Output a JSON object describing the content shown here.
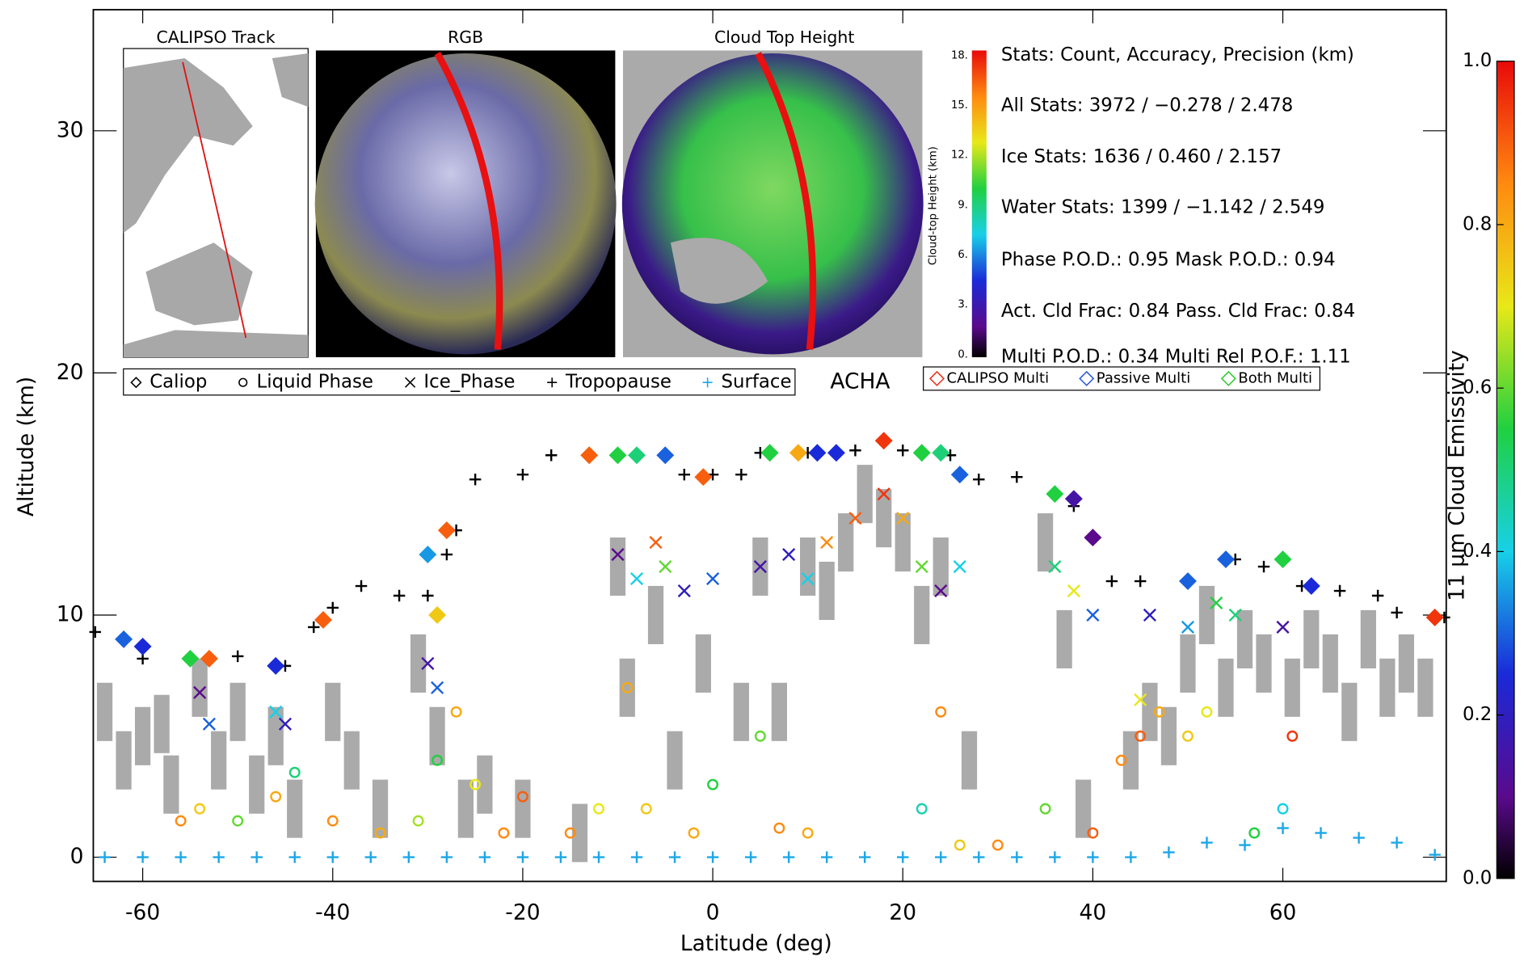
{
  "chart_data": {
    "type": "scatter",
    "xlabel": "Latitude (deg)",
    "ylabel": "Altitude (km)",
    "xlim": [
      -65.2,
      77.2
    ],
    "ylim": [
      -1,
      35
    ],
    "xticks": [
      -60,
      -40,
      -20,
      0,
      20,
      40,
      60
    ],
    "yticks": [
      0,
      10,
      20,
      30
    ],
    "insets": [
      "CALIPSO Track",
      "RGB",
      "Cloud Top Height"
    ],
    "inset_colorbar": {
      "label": "Cloud-top Height (km)",
      "lim": [
        0,
        18
      ],
      "ticks": [
        {
          "value": 0,
          "label": "0."
        },
        {
          "value": 3,
          "label": "3."
        },
        {
          "value": 6,
          "label": "6."
        },
        {
          "value": 9,
          "label": "9."
        },
        {
          "value": 12,
          "label": "12."
        },
        {
          "value": 15,
          "label": "15."
        },
        {
          "value": 18,
          "label": "18."
        }
      ]
    },
    "stats": [
      "Stats: Count, Accuracy, Precision (km)",
      "All Stats: 3972 /  −0.278 /   2.478",
      "Ice Stats: 1636 /   0.460 /   2.157",
      "Water Stats: 1399 /  −1.142 /   2.549",
      "Phase P.O.D.: 0.95  Mask P.O.D.: 0.94",
      "Act. Cld Frac: 0.84  Pass. Cld Frac: 0.84",
      "Multi P.O.D.: 0.34    Multi Rel P.O.F.: 1.11"
    ],
    "acha_label": "ACHA",
    "multi_legend": [
      {
        "name": "CALIPSO Multi",
        "color": "#e8341c"
      },
      {
        "name": "Passive Multi",
        "color": "#2a5bd7"
      },
      {
        "name": "Both Multi",
        "color": "#33cc33"
      }
    ],
    "colorbar": {
      "label": "11 μm Cloud Emissivity",
      "lim": [
        0,
        1
      ],
      "ticks": [
        {
          "value": 0,
          "label": "0.0"
        },
        0.2,
        0.4,
        0.6,
        0.8,
        {
          "value": 1,
          "label": "1.0"
        }
      ]
    },
    "acha": {
      "color": "#aaaaaa",
      "x": [
        -64,
        -62,
        -60,
        -58,
        -57,
        -54,
        -52,
        -50,
        -48,
        -46,
        -44,
        -40,
        -38,
        -35,
        -31,
        -29,
        -26,
        -24,
        -20,
        -14,
        -10,
        -9,
        -6,
        -4,
        -1,
        3,
        5,
        7,
        10,
        12,
        14,
        16,
        18,
        20,
        22,
        24,
        27,
        35,
        37,
        39,
        44,
        46,
        48,
        50,
        52,
        54,
        56,
        58,
        61,
        63,
        65,
        67,
        69,
        71,
        73,
        75
      ],
      "y": [
        6,
        4,
        5,
        5.5,
        3,
        7,
        4,
        6,
        3,
        5,
        2,
        6,
        4,
        2,
        8,
        5,
        2,
        3,
        2,
        1,
        12,
        7,
        10,
        4,
        8,
        6,
        12,
        6,
        12,
        11,
        13,
        15,
        14,
        13,
        10,
        12,
        4,
        13,
        9,
        2,
        4,
        6,
        5,
        8,
        10,
        7,
        9,
        8,
        7,
        9,
        8,
        6,
        9,
        7,
        8,
        7
      ]
    },
    "series": [
      {
        "name": "Caliop",
        "marker": "diamond",
        "x": [
          -62,
          -60,
          -55,
          -53,
          -46,
          -41,
          -30,
          -29,
          -28,
          -13,
          -10,
          -8,
          -5,
          -1,
          6,
          9,
          11,
          13,
          18,
          22,
          24,
          26,
          36,
          38,
          40,
          50,
          54,
          60,
          63,
          76
        ],
        "y": [
          9,
          8.7,
          8.2,
          8.2,
          7.9,
          9.8,
          12.5,
          10,
          13.5,
          16.6,
          16.6,
          16.6,
          16.6,
          15.7,
          16.7,
          16.7,
          16.7,
          16.7,
          17.2,
          16.7,
          16.7,
          15.8,
          15,
          14.8,
          13.2,
          11.4,
          12.3,
          12.3,
          11.2,
          9.9
        ],
        "emissivity": [
          0.3,
          0.25,
          0.55,
          0.9,
          0.25,
          0.9,
          0.35,
          0.75,
          0.9,
          0.9,
          0.55,
          0.5,
          0.3,
          0.9,
          0.55,
          0.8,
          0.25,
          0.25,
          0.95,
          0.55,
          0.5,
          0.3,
          0.55,
          0.15,
          0.1,
          0.3,
          0.3,
          0.55,
          0.25,
          0.95
        ]
      },
      {
        "name": "Liquid Phase",
        "marker": "circle",
        "x": [
          -56,
          -54,
          -50,
          -46,
          -44,
          -40,
          -35,
          -31,
          -29,
          -27,
          -25,
          -22,
          -20,
          -15,
          -12,
          -9,
          -7,
          -2,
          0,
          5,
          7,
          10,
          22,
          24,
          26,
          30,
          35,
          40,
          43,
          45,
          47,
          50,
          52,
          57,
          60,
          61
        ],
        "y": [
          1.5,
          2,
          1.5,
          2.5,
          3.5,
          1.5,
          1,
          1.5,
          4,
          6,
          3,
          1,
          2.5,
          1,
          2,
          7,
          2,
          1,
          3,
          5,
          1.2,
          1,
          2,
          6,
          0.5,
          0.5,
          2,
          1,
          4,
          5,
          6,
          5,
          6,
          1,
          2,
          5
        ],
        "emissivity": [
          0.85,
          0.75,
          0.6,
          0.8,
          0.5,
          0.85,
          0.8,
          0.65,
          0.55,
          0.8,
          0.7,
          0.85,
          0.9,
          0.85,
          0.7,
          0.8,
          0.75,
          0.8,
          0.55,
          0.6,
          0.85,
          0.8,
          0.45,
          0.85,
          0.75,
          0.85,
          0.6,
          0.9,
          0.85,
          0.9,
          0.8,
          0.75,
          0.7,
          0.55,
          0.4,
          0.95
        ]
      },
      {
        "name": "Ice_Phase",
        "marker": "x",
        "x": [
          -54,
          -53,
          -46,
          -45,
          -30,
          -29,
          -10,
          -8,
          -6,
          -5,
          -3,
          0,
          5,
          8,
          10,
          12,
          15,
          18,
          20,
          22,
          24,
          26,
          36,
          38,
          40,
          45,
          46,
          50,
          53,
          55,
          60
        ],
        "y": [
          6.8,
          5.5,
          6,
          5.5,
          8,
          7,
          12.5,
          11.5,
          13,
          12,
          11,
          11.5,
          12,
          12.5,
          11.5,
          13,
          14,
          15,
          14,
          12,
          11,
          12,
          12,
          11,
          10,
          6.5,
          10,
          9.5,
          10.5,
          10,
          9.5
        ],
        "emissivity": [
          0.1,
          0.3,
          0.4,
          0.2,
          0.15,
          0.3,
          0.1,
          0.4,
          0.9,
          0.6,
          0.2,
          0.3,
          0.15,
          0.2,
          0.4,
          0.85,
          0.9,
          0.95,
          0.8,
          0.6,
          0.1,
          0.4,
          0.5,
          0.7,
          0.3,
          0.7,
          0.2,
          0.35,
          0.55,
          0.5,
          0.15
        ]
      },
      {
        "name": "Tropopause",
        "marker": "plus",
        "color": "#000000",
        "x": [
          -65,
          -60,
          -55,
          -50,
          -45,
          -42,
          -40,
          -37,
          -33,
          -30,
          -28,
          -27,
          -25,
          -20,
          -17,
          -10,
          -5,
          -3,
          0,
          3,
          5,
          10,
          15,
          20,
          25,
          28,
          32,
          36,
          38,
          40,
          42,
          45,
          50,
          55,
          58,
          62,
          66,
          70,
          72,
          77
        ],
        "y": [
          9.3,
          8.2,
          8.2,
          8.3,
          7.9,
          9.5,
          10.3,
          11.2,
          10.8,
          10.8,
          12.5,
          13.5,
          15.6,
          15.8,
          16.6,
          16.6,
          16.6,
          15.8,
          15.8,
          15.8,
          16.7,
          16.7,
          16.8,
          16.8,
          16.6,
          15.6,
          15.7,
          15,
          14.5,
          13.2,
          11.4,
          11.4,
          11.4,
          12.3,
          12,
          11.2,
          11,
          10.8,
          10.1,
          9.9
        ]
      },
      {
        "name": "Surface",
        "marker": "plus",
        "color": "#1aa7e8",
        "x": [
          -64,
          -60,
          -56,
          -52,
          -48,
          -44,
          -40,
          -36,
          -32,
          -28,
          -24,
          -20,
          -16,
          -12,
          -8,
          -4,
          0,
          4,
          8,
          12,
          16,
          20,
          24,
          28,
          32,
          36,
          40,
          44,
          48,
          52,
          56,
          60,
          64,
          68,
          72,
          76
        ],
        "y": [
          0,
          0,
          0,
          0,
          0,
          0,
          0,
          0,
          0,
          0,
          0,
          0,
          0,
          0,
          0,
          0,
          0,
          0,
          0,
          0,
          0,
          0,
          0,
          0,
          0,
          0,
          0,
          0,
          0.2,
          0.6,
          0.5,
          1.2,
          1,
          0.8,
          0.6,
          0.1
        ]
      }
    ]
  }
}
